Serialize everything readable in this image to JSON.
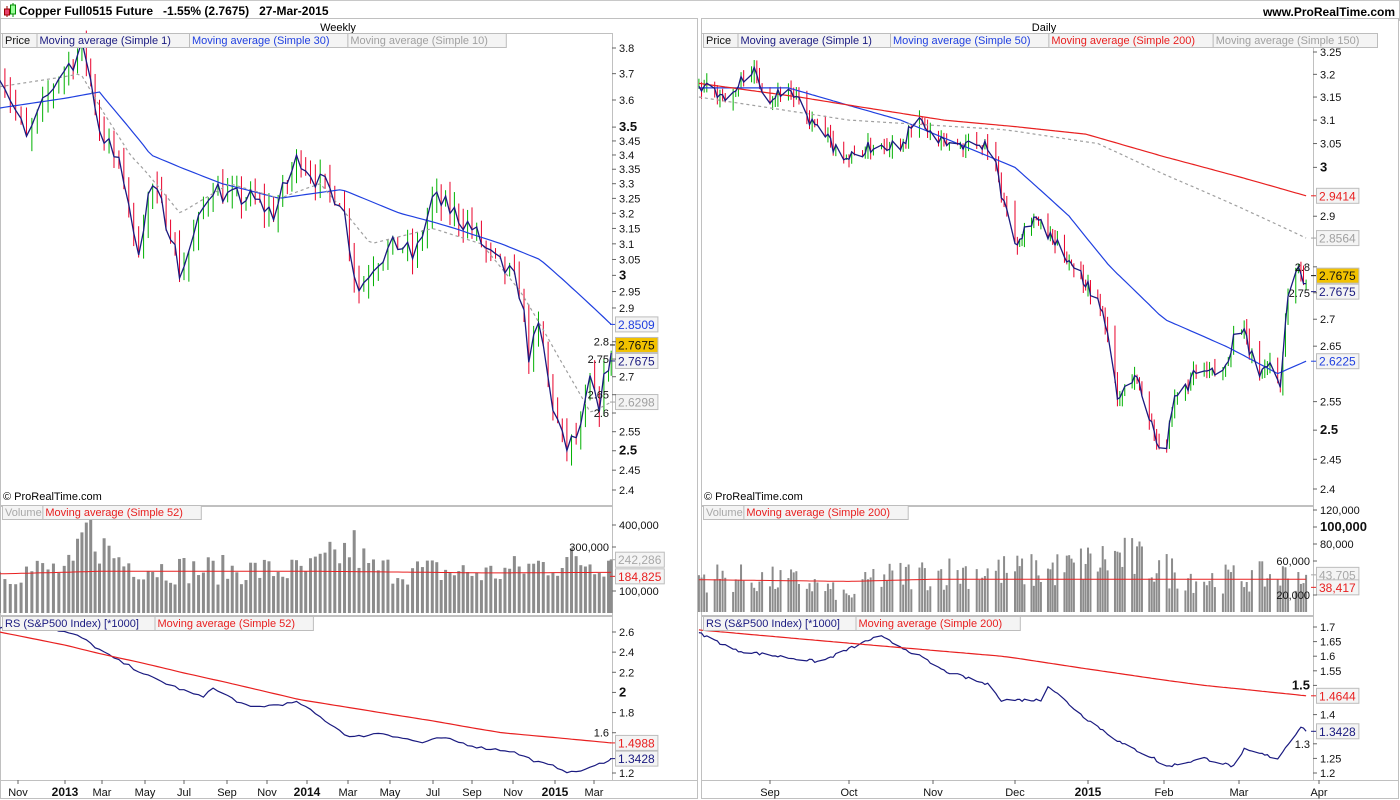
{
  "header": {
    "instrument": "Copper Full0515 Future",
    "change": "-1.55% (2.7675)",
    "date": "27-Mar-2015",
    "site": "www.ProRealTime.com"
  },
  "colors": {
    "up": "#00b000",
    "down": "#e8002a",
    "ma_navy": "#1a1a80",
    "ma_blue": "#2040e0",
    "ma_red": "#e82020",
    "ma_grey": "#a0a0a0",
    "volume": "#8c8c8c",
    "last_price_bg": "#f2c200"
  },
  "copyright": "© ProRealTime.com",
  "chart_data": [
    {
      "type": "candlestick",
      "timeframe": "Weekly",
      "scale": "log",
      "legend": [
        "Price",
        "Moving average (Simple 1)",
        "Moving average (Simple 30)",
        "Moving average (Simple 10)"
      ],
      "yticks": [
        3.8,
        3.7,
        3.6,
        3.5,
        3.45,
        3.4,
        3.35,
        3.3,
        3.25,
        3.2,
        3.15,
        3.1,
        3.05,
        3,
        2.95,
        2.9,
        2.8,
        2.75,
        2.7,
        2.65,
        2.6,
        2.55,
        2.5,
        2.45,
        2.4
      ],
      "ylim": [
        2.4,
        3.8
      ],
      "xticks": [
        {
          "label": "Nov",
          "date": "2012-11-01"
        },
        {
          "label": "2013",
          "date": "2013-01-01"
        },
        {
          "label": "Mar",
          "date": "2013-03-01"
        },
        {
          "label": "May",
          "date": "2013-05-01"
        },
        {
          "label": "Jul",
          "date": "2013-07-01"
        },
        {
          "label": "Sep",
          "date": "2013-09-01"
        },
        {
          "label": "Nov",
          "date": "2013-11-01"
        },
        {
          "label": "2014",
          "date": "2014-01-01"
        },
        {
          "label": "Mar",
          "date": "2014-03-01"
        },
        {
          "label": "May",
          "date": "2014-05-01"
        },
        {
          "label": "Jul",
          "date": "2014-07-01"
        },
        {
          "label": "Sep",
          "date": "2014-09-01"
        },
        {
          "label": "Nov",
          "date": "2014-11-01"
        },
        {
          "label": "2015",
          "date": "2015-01-01"
        },
        {
          "label": "Mar",
          "date": "2015-03-01"
        }
      ],
      "close": [
        [
          "2012-10-08",
          3.72
        ],
        [
          "2012-11-12",
          3.45
        ],
        [
          "2012-12-25",
          3.7
        ],
        [
          "2013-02-01",
          3.8
        ],
        [
          "2013-02-25",
          3.5
        ],
        [
          "2013-04-05",
          3.3
        ],
        [
          "2013-04-18",
          3.05
        ],
        [
          "2013-05-10",
          3.3
        ],
        [
          "2013-06-10",
          3.15
        ],
        [
          "2013-06-25",
          3.0
        ],
        [
          "2013-07-20",
          3.15
        ],
        [
          "2013-08-10",
          3.3
        ],
        [
          "2013-09-05",
          3.25
        ],
        [
          "2013-10-05",
          3.25
        ],
        [
          "2013-11-12",
          3.2
        ],
        [
          "2013-12-20",
          3.4
        ],
        [
          "2014-01-20",
          3.3
        ],
        [
          "2014-02-20",
          3.25
        ],
        [
          "2014-03-15",
          2.95
        ],
        [
          "2014-04-10",
          3.05
        ],
        [
          "2014-05-15",
          3.1
        ],
        [
          "2014-06-05",
          3.05
        ],
        [
          "2014-07-01",
          3.25
        ],
        [
          "2014-08-05",
          3.2
        ],
        [
          "2014-09-01",
          3.15
        ],
        [
          "2014-10-01",
          3.05
        ],
        [
          "2014-10-28",
          3.0
        ],
        [
          "2014-11-12",
          2.95
        ],
        [
          "2014-11-25",
          2.75
        ],
        [
          "2014-12-10",
          2.85
        ],
        [
          "2014-12-25",
          2.65
        ],
        [
          "2015-01-16",
          2.5
        ],
        [
          "2015-02-10",
          2.55
        ],
        [
          "2015-02-24",
          2.7
        ],
        [
          "2015-03-05",
          2.6
        ],
        [
          "2015-03-27",
          2.7675
        ]
      ],
      "ma30": [
        [
          "2012-10-08",
          3.57
        ],
        [
          "2013-02-25",
          3.63
        ],
        [
          "2013-05-10",
          3.4
        ],
        [
          "2013-08-25",
          3.3
        ],
        [
          "2013-11-20",
          3.25
        ],
        [
          "2014-02-20",
          3.28
        ],
        [
          "2014-05-15",
          3.2
        ],
        [
          "2014-08-05",
          3.15
        ],
        [
          "2014-10-15",
          3.1
        ],
        [
          "2014-12-10",
          3.05
        ],
        [
          "2015-03-27",
          2.8509
        ]
      ],
      "ma10": [
        [
          "2012-10-08",
          3.65
        ],
        [
          "2013-01-26",
          3.7
        ],
        [
          "2013-04-10",
          3.4
        ],
        [
          "2013-06-25",
          3.2
        ],
        [
          "2013-09-05",
          3.3
        ],
        [
          "2013-11-20",
          3.25
        ],
        [
          "2014-01-20",
          3.3
        ],
        [
          "2014-04-03",
          3.1
        ],
        [
          "2014-07-01",
          3.15
        ],
        [
          "2014-09-15",
          3.1
        ],
        [
          "2014-11-12",
          2.95
        ],
        [
          "2015-01-08",
          2.75
        ],
        [
          "2015-02-24",
          2.6
        ],
        [
          "2015-03-27",
          2.6298
        ]
      ],
      "last_labels": {
        "ma30": "2.8509",
        "price": "2.7675",
        "ma1": "2.7675",
        "ma10": "2.6298"
      },
      "volume": {
        "legend": [
          "Volume",
          "Moving average (Simple 52)"
        ],
        "yticks": [
          {
            "v": 400000,
            "t": "400,000"
          },
          {
            "v": 300000,
            "t": "300,000"
          },
          {
            "v": 100000,
            "t": "100,000"
          }
        ],
        "values": [
          [
            "2012-10-08",
            190000
          ],
          [
            "2013-01-15",
            200000
          ],
          [
            "2013-02-08",
            420000
          ],
          [
            "2013-03-01",
            300000
          ],
          [
            "2013-04-01",
            230000
          ],
          [
            "2013-06-01",
            200000
          ],
          [
            "2014-01-01",
            190000
          ],
          [
            "2014-03-10",
            300000
          ],
          [
            "2014-04-01",
            200000
          ],
          [
            "2014-10-01",
            180000
          ],
          [
            "2015-01-01",
            230000
          ],
          [
            "2015-03-27",
            242286
          ]
        ],
        "ma52": [
          [
            "2012-10-08",
            178000
          ],
          [
            "2013-03-01",
            190000
          ],
          [
            "2014-01-01",
            190000
          ],
          [
            "2014-10-01",
            182000
          ],
          [
            "2015-03-27",
            184825
          ]
        ],
        "last_labels": {
          "volume": "242,286",
          "ma52": "184,825"
        }
      },
      "rs": {
        "legend": [
          "RS (S&P500 Index) [*1000]",
          "Moving average (Simple 52)"
        ],
        "yticks": [
          2.6,
          2.4,
          2.2,
          2,
          1.8,
          1.6,
          1.2
        ],
        "ylim": [
          1.2,
          2.6
        ],
        "values": [
          [
            "2012-10-08",
            2.65
          ],
          [
            "2012-12-08",
            2.65
          ],
          [
            "2013-01-26",
            2.55
          ],
          [
            "2013-03-15",
            2.35
          ],
          [
            "2013-05-10",
            2.15
          ],
          [
            "2013-07-28",
            1.95
          ],
          [
            "2013-08-08",
            2.05
          ],
          [
            "2013-10-05",
            1.85
          ],
          [
            "2013-12-20",
            1.9
          ],
          [
            "2014-03-05",
            1.55
          ],
          [
            "2014-04-18",
            1.6
          ],
          [
            "2014-06-15",
            1.5
          ],
          [
            "2014-07-15",
            1.55
          ],
          [
            "2014-09-15",
            1.45
          ],
          [
            "2014-10-28",
            1.42
          ],
          [
            "2014-12-10",
            1.3
          ],
          [
            "2015-01-08",
            1.25
          ],
          [
            "2015-01-24",
            1.2
          ],
          [
            "2015-02-24",
            1.25
          ],
          [
            "2015-03-27",
            1.3428
          ]
        ],
        "ma52": [
          [
            "2012-10-08",
            2.6
          ],
          [
            "2013-12-20",
            1.93
          ],
          [
            "2014-10-15",
            1.6
          ],
          [
            "2015-03-27",
            1.4988
          ]
        ],
        "last_labels": {
          "ma52": "1.4988",
          "rs": "1.3428"
        }
      }
    },
    {
      "type": "candlestick",
      "timeframe": "Daily",
      "scale": "log",
      "legend": [
        "Price",
        "Moving average (Simple 1)",
        "Moving average (Simple 50)",
        "Moving average (Simple 200)",
        "Moving average (Simple 150)"
      ],
      "yticks": [
        3.25,
        3.2,
        3.15,
        3.1,
        3.05,
        3,
        2.9,
        2.8,
        2.75,
        2.7,
        2.65,
        2.55,
        2.5,
        2.45,
        2.4
      ],
      "ylim": [
        2.4,
        3.25
      ],
      "xticks": [
        {
          "label": "Sep",
          "date": "2014-09-01"
        },
        {
          "label": "Oct",
          "date": "2014-10-01"
        },
        {
          "label": "Nov",
          "date": "2014-11-01"
        },
        {
          "label": "Dec",
          "date": "2014-12-01"
        },
        {
          "label": "2015",
          "date": "2015-01-01"
        },
        {
          "label": "Feb",
          "date": "2015-02-01"
        },
        {
          "label": "Mar",
          "date": "2015-03-01"
        },
        {
          "label": "Apr",
          "date": "2015-04-01"
        }
      ],
      "close": [
        [
          "2014-08-06",
          3.17
        ],
        [
          "2014-08-18",
          3.15
        ],
        [
          "2014-08-24",
          3.22
        ],
        [
          "2014-09-01",
          3.15
        ],
        [
          "2014-09-08",
          3.17
        ],
        [
          "2014-09-16",
          3.1
        ],
        [
          "2014-09-24",
          3.05
        ],
        [
          "2014-10-01",
          3.02
        ],
        [
          "2014-10-12",
          3.05
        ],
        [
          "2014-10-20",
          3.05
        ],
        [
          "2014-10-27",
          3.1
        ],
        [
          "2014-11-03",
          3.05
        ],
        [
          "2014-11-14",
          3.05
        ],
        [
          "2014-11-22",
          3.05
        ],
        [
          "2014-11-26",
          2.95
        ],
        [
          "2014-12-01",
          2.85
        ],
        [
          "2014-12-09",
          2.9
        ],
        [
          "2014-12-17",
          2.85
        ],
        [
          "2014-12-27",
          2.8
        ],
        [
          "2015-01-03",
          2.75
        ],
        [
          "2015-01-08",
          2.7
        ],
        [
          "2015-01-13",
          2.55
        ],
        [
          "2015-01-20",
          2.6
        ],
        [
          "2015-01-28",
          2.5
        ],
        [
          "2015-02-01",
          2.45
        ],
        [
          "2015-02-05",
          2.55
        ],
        [
          "2015-02-13",
          2.6
        ],
        [
          "2015-02-23",
          2.6
        ],
        [
          "2015-03-01",
          2.7
        ],
        [
          "2015-03-08",
          2.6
        ],
        [
          "2015-03-13",
          2.62
        ],
        [
          "2015-03-17",
          2.58
        ],
        [
          "2015-03-20",
          2.75
        ],
        [
          "2015-03-24",
          2.8
        ],
        [
          "2015-03-27",
          2.7675
        ]
      ],
      "ma50": [
        [
          "2014-08-05",
          3.17
        ],
        [
          "2014-09-08",
          3.17
        ],
        [
          "2014-10-20",
          3.1
        ],
        [
          "2014-11-10",
          3.05
        ],
        [
          "2014-12-01",
          3.0
        ],
        [
          "2014-12-24",
          2.9
        ],
        [
          "2015-01-10",
          2.8
        ],
        [
          "2015-02-01",
          2.7
        ],
        [
          "2015-02-24",
          2.65
        ],
        [
          "2015-03-16",
          2.6
        ],
        [
          "2015-03-27",
          2.6225
        ]
      ],
      "ma200": [
        [
          "2014-08-05",
          3.18
        ],
        [
          "2014-09-12",
          3.15
        ],
        [
          "2014-11-05",
          3.1
        ],
        [
          "2014-12-31",
          3.07
        ],
        [
          "2015-02-16",
          3.0
        ],
        [
          "2015-03-27",
          2.9414
        ]
      ],
      "ma150": [
        [
          "2014-08-05",
          3.15
        ],
        [
          "2014-10-01",
          3.1
        ],
        [
          "2014-11-26",
          3.08
        ],
        [
          "2015-01-05",
          3.05
        ],
        [
          "2015-02-16",
          2.95
        ],
        [
          "2015-03-27",
          2.8564
        ]
      ],
      "last_labels": {
        "ma200": "2.9414",
        "ma150": "2.8564",
        "price": "2.7675",
        "ma1": "2.7675",
        "ma50": "2.6225"
      },
      "volume": {
        "legend": [
          "Volume",
          "Moving average (Simple 200)"
        ],
        "yticks": [
          {
            "v": 120000,
            "t": "120,000"
          },
          {
            "v": 100000,
            "t": "100,000",
            "bold": true
          },
          {
            "v": 80000,
            "t": "80,000"
          },
          {
            "v": 60000,
            "t": "60,000"
          },
          {
            "v": 20000,
            "t": "20,000"
          }
        ],
        "values": [
          [
            "2014-08-05",
            42000
          ],
          [
            "2014-09-15",
            35000
          ],
          [
            "2014-10-01",
            18000
          ],
          [
            "2014-10-10",
            40000
          ],
          [
            "2014-11-10",
            48000
          ],
          [
            "2014-12-15",
            48000
          ],
          [
            "2015-01-15",
            65000
          ],
          [
            "2015-02-15",
            38000
          ],
          [
            "2015-03-27",
            43705
          ]
        ],
        "ma200": [
          [
            "2014-08-05",
            38000
          ],
          [
            "2014-10-01",
            36000
          ],
          [
            "2014-11-01",
            38500
          ],
          [
            "2015-03-27",
            38417
          ]
        ],
        "last_labels": {
          "volume": "43,705",
          "ma200": "38,417"
        }
      },
      "rs": {
        "legend": [
          "RS (S&P500 Index) [*1000]",
          "Moving average (Simple 200)"
        ],
        "yticks": [
          1.7,
          1.65,
          1.6,
          1.55,
          1.5,
          1.4,
          1.3,
          1.25,
          1.2
        ],
        "ylim": [
          1.2,
          1.7
        ],
        "values": [
          [
            "2014-08-05",
            1.68
          ],
          [
            "2014-08-19",
            1.62
          ],
          [
            "2014-09-20",
            1.58
          ],
          [
            "2014-10-12",
            1.67
          ],
          [
            "2014-10-27",
            1.6
          ],
          [
            "2014-11-05",
            1.55
          ],
          [
            "2014-11-22",
            1.5
          ],
          [
            "2014-11-26",
            1.45
          ],
          [
            "2014-12-13",
            1.45
          ],
          [
            "2014-12-15",
            1.5
          ],
          [
            "2014-12-29",
            1.4
          ],
          [
            "2015-01-15",
            1.3
          ],
          [
            "2015-01-28",
            1.25
          ],
          [
            "2015-02-01",
            1.22
          ],
          [
            "2015-02-16",
            1.25
          ],
          [
            "2015-02-28",
            1.22
          ],
          [
            "2015-03-03",
            1.28
          ],
          [
            "2015-03-16",
            1.25
          ],
          [
            "2015-03-25",
            1.36
          ],
          [
            "2015-03-27",
            1.3428
          ]
        ],
        "ma200": [
          [
            "2014-08-05",
            1.69
          ],
          [
            "2014-11-26",
            1.6
          ],
          [
            "2015-02-16",
            1.5
          ],
          [
            "2015-03-27",
            1.4644
          ]
        ],
        "last_labels": {
          "ma200": "1.4644",
          "rs": "1.3428"
        }
      }
    }
  ]
}
